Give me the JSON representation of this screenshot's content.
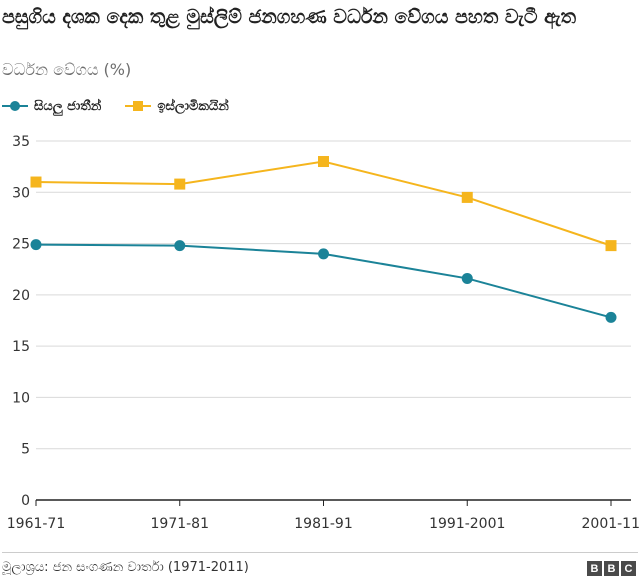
{
  "title": "පසුගිය දශක දෙක තුළ මුස්ලිම් ජනගහණ වර්ධන වේගය පහත වැටී ඇත",
  "subtitle": "වර්ධන වේගය (%)",
  "source": "මූලාශ්‍රය: ජන සංගණන වාර්තා (1971-2011)",
  "logo": [
    "B",
    "B",
    "C"
  ],
  "colors": {
    "series1": "#1b8398",
    "series2": "#f5b51d",
    "axis": "#222222",
    "grid": "#d9d9d9"
  },
  "chart_data": {
    "type": "line",
    "title": "පසුගිය දශක දෙක තුළ මුස්ලිම් ජනගහණ වර්ධන වේගය පහත වැටී ඇත",
    "ylabel": "වර්ධන වේගය (%)",
    "categories": [
      "1961-71",
      "1971-81",
      "1981-91",
      "1991-2001",
      "2001-11"
    ],
    "ylim": [
      0,
      35
    ],
    "yticks": [
      0,
      5,
      10,
      15,
      20,
      25,
      30,
      35
    ],
    "grid": true,
    "legend": "top-left",
    "series": [
      {
        "name": "සියලු ජාතීන්",
        "marker": "circle",
        "values": [
          24.9,
          24.8,
          24.0,
          21.6,
          17.8
        ]
      },
      {
        "name": "ඉස්ලාමිකයින්",
        "marker": "square",
        "values": [
          31.0,
          30.8,
          33.0,
          29.5,
          24.8
        ]
      }
    ]
  }
}
